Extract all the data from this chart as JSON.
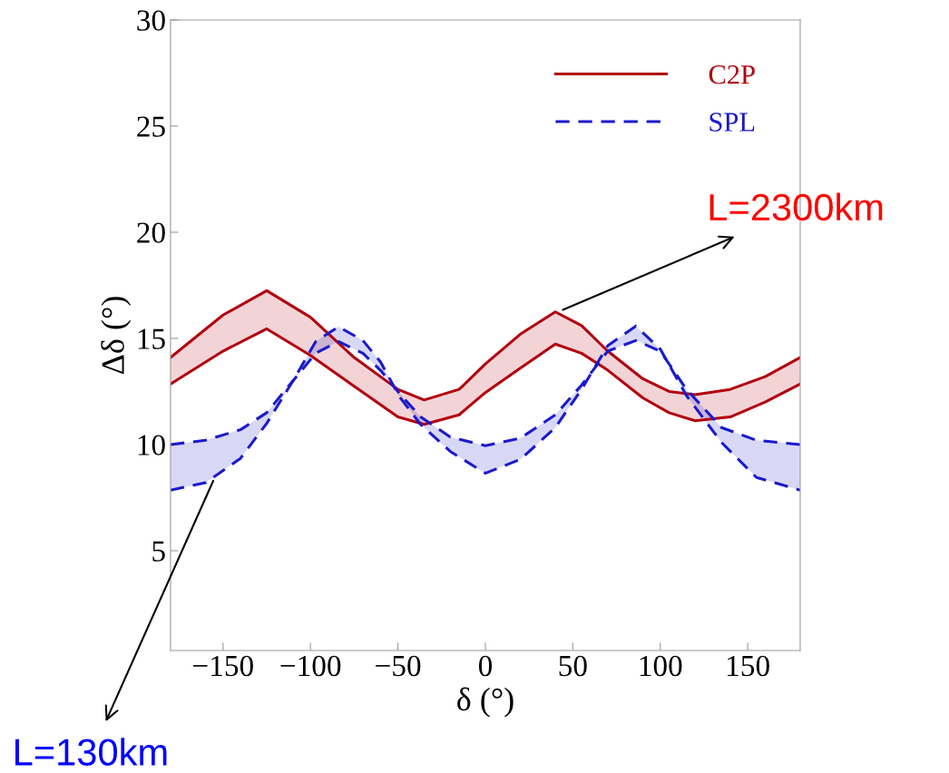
{
  "chart_data": {
    "type": "line",
    "xlabel": "δ (°)",
    "ylabel": "Δδ (°)",
    "xlim": [
      -180,
      180
    ],
    "xticks": [
      {
        "value": -150,
        "label": "−150"
      },
      {
        "value": -100,
        "label": "−100"
      },
      {
        "value": -50,
        "label": "−50"
      },
      0,
      50,
      100,
      150
    ],
    "ylim": [
      0.3,
      30
    ],
    "yticks": [
      5,
      10,
      15,
      20,
      25,
      30
    ],
    "grid": false,
    "legend": "top right",
    "series": [
      {
        "name": "C2P",
        "color": "#b2000f",
        "line_style": "solid",
        "x": [
          -180,
          -150,
          -125,
          -100,
          -75,
          -50,
          -35,
          -15,
          0,
          20,
          40,
          55,
          70,
          90,
          105,
          120,
          140,
          160,
          180
        ],
        "values": [
          14.1,
          16.1,
          17.25,
          16.0,
          14.1,
          12.6,
          12.1,
          12.6,
          13.8,
          15.2,
          16.25,
          15.6,
          14.4,
          13.1,
          12.5,
          12.35,
          12.6,
          13.2,
          14.1
        ],
        "lower": [
          12.85,
          14.4,
          15.45,
          14.2,
          12.75,
          11.3,
          10.95,
          11.4,
          12.45,
          13.6,
          14.73,
          14.3,
          13.5,
          12.2,
          11.5,
          11.12,
          11.3,
          12.0,
          12.85
        ],
        "upper": [
          14.1,
          16.1,
          17.25,
          16.0,
          14.1,
          12.6,
          12.1,
          12.6,
          13.8,
          15.2,
          16.25,
          15.6,
          14.4,
          13.1,
          12.5,
          12.35,
          12.6,
          13.2,
          14.1
        ]
      },
      {
        "color": "#b2000f",
        "line_style": "solid",
        "x": [
          -180,
          -150,
          -125,
          -100,
          -75,
          -50,
          -35,
          -15,
          0,
          20,
          40,
          55,
          70,
          90,
          105,
          120,
          140,
          160,
          180
        ],
        "values": [
          12.85,
          14.4,
          15.45,
          14.2,
          12.75,
          11.3,
          10.95,
          11.4,
          12.45,
          13.6,
          14.73,
          14.3,
          13.5,
          12.2,
          11.5,
          11.12,
          11.3,
          12.0,
          12.85
        ]
      },
      {
        "name": "SPL",
        "color": "#1a1acc",
        "line_style": "dashed",
        "x": [
          -180,
          -160,
          -140,
          -125,
          -110,
          -97,
          -84,
          -70,
          -60,
          -49,
          -37,
          -20,
          0,
          20,
          40,
          55,
          70,
          86,
          100,
          115,
          135,
          155,
          180
        ],
        "values": [
          10.0,
          10.2,
          10.7,
          11.5,
          13.0,
          14.3,
          14.85,
          14.3,
          13.5,
          12.4,
          11.3,
          10.35,
          9.95,
          10.3,
          11.4,
          12.8,
          14.4,
          14.9,
          14.4,
          12.6,
          10.8,
          10.2,
          10.0
        ],
        "lower": [
          7.85,
          8.2,
          9.35,
          11.0,
          13.0,
          14.85,
          15.55,
          14.9,
          13.9,
          12.24,
          10.95,
          9.67,
          8.65,
          9.3,
          10.8,
          12.6,
          14.66,
          15.58,
          14.5,
          12.3,
          10.1,
          8.45,
          7.85
        ],
        "upper": [
          10.0,
          10.2,
          10.7,
          11.5,
          13.0,
          14.3,
          14.85,
          14.3,
          13.5,
          12.4,
          11.3,
          10.35,
          9.95,
          10.3,
          11.4,
          12.8,
          14.4,
          14.9,
          14.4,
          12.6,
          10.8,
          10.2,
          10.0
        ]
      },
      {
        "color": "#1a1acc",
        "line_style": "dashed",
        "x": [
          -180,
          -160,
          -140,
          -125,
          -110,
          -97,
          -84,
          -70,
          -60,
          -49,
          -37,
          -20,
          0,
          20,
          40,
          55,
          70,
          86,
          100,
          115,
          135,
          155,
          180
        ],
        "values": [
          7.85,
          8.2,
          9.35,
          11.0,
          13.0,
          14.85,
          15.55,
          14.9,
          13.9,
          12.24,
          10.95,
          9.67,
          8.65,
          9.3,
          10.8,
          12.6,
          14.66,
          15.58,
          14.5,
          12.3,
          10.1,
          8.45,
          7.85
        ]
      }
    ],
    "annotations": [
      {
        "text": "L=2300km",
        "x": 43,
        "y": 16.3
      },
      {
        "text": "L=130km",
        "x": -155,
        "y": 8.4
      }
    ]
  }
}
